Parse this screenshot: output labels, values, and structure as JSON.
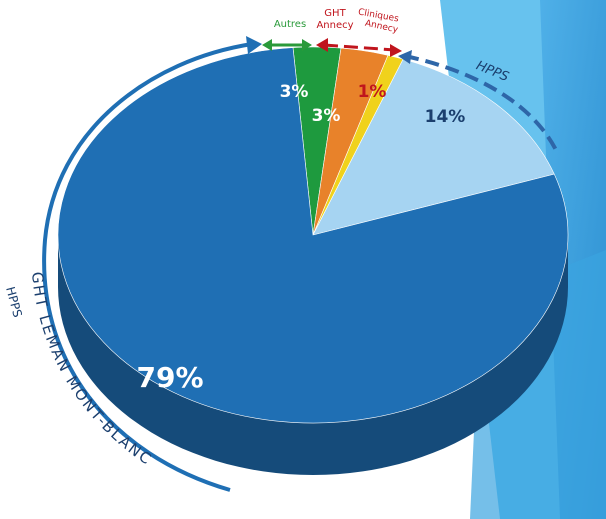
{
  "chart_data": {
    "type": "pie",
    "title": "",
    "slices": [
      {
        "label": "GHT LEMAN MONT-BLANC",
        "value": 79,
        "value_label": "79%",
        "color": "#1f6fb4"
      },
      {
        "label": "Autres",
        "value": 3,
        "value_label": "3%",
        "color": "#1e9a3e"
      },
      {
        "label": "GHT Annecy",
        "value": 3,
        "value_label": "3%",
        "color": "#e8822a"
      },
      {
        "label": "Cliniques Annecy",
        "value": 1,
        "value_label": "1%",
        "color": "#f0d21c"
      },
      {
        "label": "HPPS",
        "value": 14,
        "value_label": "14%",
        "color": "#a6d4f2"
      }
    ],
    "annotations": {
      "autres": "Autres",
      "ght_annecy_line1": "GHT",
      "ght_annecy_line2": "Annecy",
      "cliniques_line1": "Cliniques",
      "cliniques_line2": "Annecy",
      "hpps": "HPPS",
      "ght_leman": "GHT LEMAN MONT-BLANC",
      "hpps_cut": "HPPS"
    },
    "colors": {
      "green": "#2a9a3a",
      "red": "#c0151d",
      "blue_arrow": "#1f6fb4",
      "hpps_dashes": "#2e66a8",
      "text_dark": "#1b3f6e",
      "label_white": "#ffffff",
      "label_red": "#c0151d",
      "label_navy": "#1b3f6e",
      "side_dark": "#0f4e87",
      "side_darker": "#0c3f6d"
    }
  }
}
